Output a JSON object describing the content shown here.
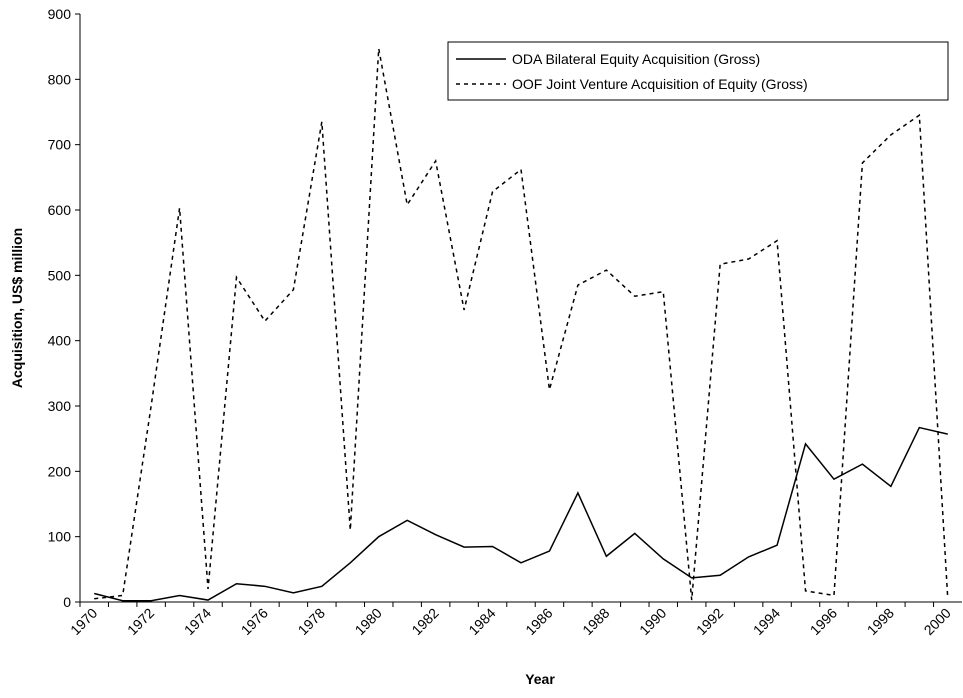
{
  "chart_data": {
    "type": "line",
    "x_label": "Year",
    "y_label": "Acquisition, US$ million",
    "categories": [
      "1970",
      null,
      "1972",
      null,
      "1974",
      null,
      "1976",
      null,
      "1978",
      null,
      "1980",
      null,
      "1982",
      null,
      "1984",
      null,
      "1986",
      null,
      "1988",
      null,
      "1990",
      null,
      "1992",
      null,
      "1994",
      null,
      "1996",
      null,
      "1998",
      null,
      "2000"
    ],
    "series": [
      {
        "name": "ODA Bilateral Equity Acquisition (Gross)",
        "color": "#000000",
        "dash": "solid",
        "values": [
          13,
          2,
          2,
          10,
          3,
          28,
          24,
          14,
          24,
          60,
          100,
          125,
          103,
          84,
          85,
          60,
          78,
          167,
          70,
          105,
          66,
          37,
          41,
          69,
          87,
          242,
          188,
          211,
          177,
          267,
          257
        ]
      },
      {
        "name": "OOF Joint Venture Acquisition of Equity (Gross)",
        "color": "#000000",
        "dash": "dotted",
        "values": [
          5,
          10,
          300,
          603,
          20,
          497,
          430,
          478,
          735,
          110,
          847,
          608,
          675,
          447,
          628,
          662,
          325,
          485,
          508,
          468,
          475,
          3,
          517,
          525,
          553,
          17,
          10,
          672,
          715,
          745,
          5
        ]
      }
    ],
    "ylim": [
      0,
      900
    ],
    "yticks": [
      0,
      100,
      200,
      300,
      400,
      500,
      600,
      700,
      800,
      900
    ],
    "grid": false,
    "legend": "top-right"
  }
}
